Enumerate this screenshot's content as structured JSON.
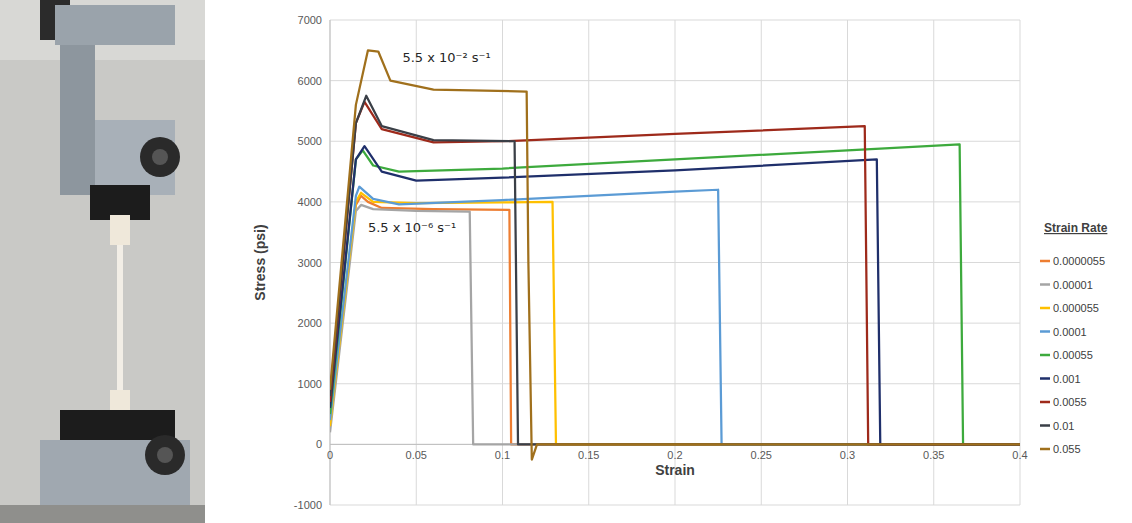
{
  "chart_data": {
    "type": "line",
    "x_label": "Strain",
    "y_label": "Stress (psi)",
    "legend_title": "Strain Rate",
    "legend": "right",
    "grid": true,
    "xlim": [
      0,
      0.4
    ],
    "xticks": [
      0,
      0.05,
      0.1,
      0.15,
      0.2,
      0.25,
      0.3,
      0.35,
      0.4
    ],
    "ylim": [
      -1000,
      7000
    ],
    "yticks": [
      -1000,
      0,
      1000,
      2000,
      3000,
      4000,
      5000,
      6000,
      7000
    ],
    "annotations": [
      {
        "text": "5.5 x 10⁻² s⁻¹",
        "x": 0.042,
        "y": 6300
      },
      {
        "text": "5.5 x 10⁻⁶ s⁻¹",
        "x": 0.022,
        "y": 3500
      }
    ],
    "series": [
      {
        "name": "0.0000055",
        "color": "#ed7d31",
        "x": [
          0,
          0.015,
          0.018,
          0.022,
          0.03,
          0.06,
          0.104,
          0.105,
          0.107,
          0.4
        ],
        "values": [
          300,
          3950,
          4100,
          4000,
          3900,
          3880,
          3870,
          0,
          0,
          0
        ]
      },
      {
        "name": "0.00001",
        "color": "#a5a5a5",
        "x": [
          0,
          0.015,
          0.018,
          0.025,
          0.05,
          0.08,
          0.081,
          0.083,
          0.4
        ],
        "values": [
          200,
          3850,
          3950,
          3880,
          3850,
          3840,
          3840,
          0,
          0
        ]
      },
      {
        "name": "0.000055",
        "color": "#ffc000",
        "x": [
          0,
          0.015,
          0.018,
          0.025,
          0.05,
          0.1,
          0.129,
          0.131,
          0.4
        ],
        "values": [
          300,
          4000,
          4150,
          4000,
          3980,
          3990,
          4000,
          0,
          0
        ]
      },
      {
        "name": "0.0001",
        "color": "#5b9bd5",
        "x": [
          0,
          0.015,
          0.017,
          0.025,
          0.04,
          0.1,
          0.15,
          0.2,
          0.225,
          0.227,
          0.4
        ],
        "values": [
          400,
          4100,
          4250,
          4050,
          3960,
          4030,
          4100,
          4170,
          4200,
          0,
          0
        ]
      },
      {
        "name": "0.00055",
        "color": "#3daa3d",
        "x": [
          0,
          0.015,
          0.019,
          0.025,
          0.04,
          0.1,
          0.2,
          0.3,
          0.365,
          0.367,
          0.4
        ],
        "values": [
          500,
          4700,
          4850,
          4600,
          4500,
          4550,
          4700,
          4850,
          4950,
          0,
          0
        ]
      },
      {
        "name": "0.001",
        "color": "#1f2f6b",
        "x": [
          0,
          0.015,
          0.02,
          0.03,
          0.05,
          0.1,
          0.2,
          0.317,
          0.319,
          0.4
        ],
        "values": [
          600,
          4700,
          4920,
          4500,
          4350,
          4400,
          4520,
          4700,
          0,
          0
        ]
      },
      {
        "name": "0.0055",
        "color": "#9e2a1b",
        "x": [
          0,
          0.015,
          0.02,
          0.03,
          0.06,
          0.1,
          0.2,
          0.31,
          0.312,
          0.4
        ],
        "values": [
          700,
          5300,
          5650,
          5200,
          4980,
          5000,
          5120,
          5250,
          0,
          0
        ]
      },
      {
        "name": "0.01",
        "color": "#3a3f47",
        "x": [
          0,
          0.015,
          0.021,
          0.03,
          0.06,
          0.106,
          0.107,
          0.109,
          0.4
        ],
        "values": [
          800,
          5300,
          5750,
          5250,
          5020,
          5000,
          5000,
          0,
          0
        ]
      },
      {
        "name": "0.055",
        "color": "#a0701c",
        "x": [
          0,
          0.015,
          0.022,
          0.028,
          0.035,
          0.06,
          0.114,
          0.115,
          0.117,
          0.12,
          0.4
        ],
        "values": [
          900,
          5600,
          6500,
          6480,
          6000,
          5850,
          5820,
          3000,
          -250,
          0,
          0
        ]
      }
    ]
  }
}
